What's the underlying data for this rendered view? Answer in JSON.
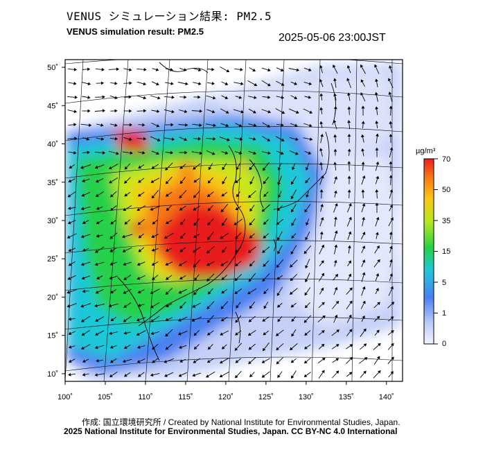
{
  "header": {
    "title_jp": "VENUS シミュレーション結果: PM2.5",
    "title_en": "VENUS simulation result: PM2.5",
    "timestamp": "2025-05-06 23:00JST"
  },
  "map": {
    "lat_labels": [
      "50˚",
      "45˚",
      "40˚",
      "35˚",
      "30˚",
      "25˚",
      "20˚",
      "15˚",
      "10˚"
    ],
    "lon_labels": [
      "100˚",
      "105˚",
      "110˚",
      "115˚",
      "120˚",
      "125˚",
      "130˚",
      "135˚",
      "140˚"
    ],
    "lon_values": [
      100,
      105,
      110,
      115,
      120,
      125,
      130,
      135,
      140
    ],
    "lat_values": [
      50,
      45,
      40,
      35,
      30,
      25,
      20,
      15,
      10
    ],
    "lon_range": [
      100,
      142
    ],
    "lat_range": [
      9,
      51
    ]
  },
  "colorbar": {
    "unit": "µg/m³",
    "ticks": [
      "70",
      "50",
      "35",
      "15",
      "5",
      "1",
      "0"
    ],
    "colors": [
      "#f0f0ff",
      "#b8c8f8",
      "#5a8ef0",
      "#1ec8d8",
      "#28d048",
      "#c8e81e",
      "#f8c818",
      "#f87818",
      "#e81e1e"
    ]
  },
  "footer": {
    "credit_jp": "作成: 国立環境研究所 / Created by National Institute for Environmental Studies, Japan.",
    "credit_en": "2025 National Institute for Environmental Studies, Japan. CC BY-NC 4.0 International"
  }
}
